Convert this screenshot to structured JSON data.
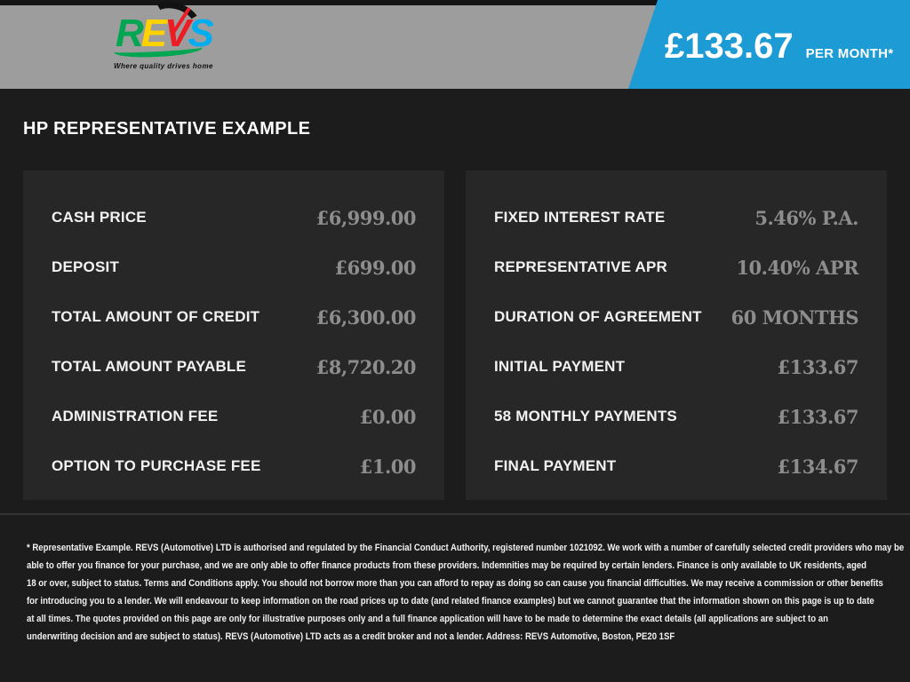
{
  "header": {
    "logo": {
      "letters": [
        "R",
        "E",
        "V",
        "S"
      ],
      "letter_colors": [
        "#00a651",
        "#ffd200",
        "#ed1c24",
        "#00aeef"
      ],
      "tagline": "Where quality drives home"
    },
    "price": "£133.67",
    "price_suffix": "PER MONTH*",
    "banner_color": "#1d9bd5"
  },
  "title": "HP REPRESENTATIVE EXAMPLE",
  "panels": {
    "left": {
      "rows": [
        {
          "label": "CASH PRICE",
          "value": "£6,999.00"
        },
        {
          "label": "DEPOSIT",
          "value": "£699.00"
        },
        {
          "label": "TOTAL AMOUNT OF CREDIT",
          "value": "£6,300.00"
        },
        {
          "label": "TOTAL AMOUNT PAYABLE",
          "value": "£8,720.20"
        },
        {
          "label": "ADMINISTRATION FEE",
          "value": "£0.00"
        },
        {
          "label": "OPTION TO PURCHASE FEE",
          "value": "£1.00"
        }
      ]
    },
    "right": {
      "rows": [
        {
          "label": "FIXED INTEREST RATE",
          "value": "5.46% P.A."
        },
        {
          "label": "REPRESENTATIVE APR",
          "value": "10.40% APR"
        },
        {
          "label": "DURATION OF AGREEMENT",
          "value": "60 MONTHS"
        },
        {
          "label": "INITIAL PAYMENT",
          "value": "£133.67"
        },
        {
          "label": "58 MONTHLY PAYMENTS",
          "value": "£133.67"
        },
        {
          "label": "FINAL PAYMENT",
          "value": "£134.67"
        }
      ]
    }
  },
  "disclaimer": {
    "lines": [
      "* Representative Example. REVS (Automotive) LTD is authorised and regulated by the Financial Conduct Authority, registered number 1021092. We work with a number of carefully selected credit providers who may be",
      "able to offer you finance for your purchase, and we are only able to offer finance products from these providers. Indemnities may be required by certain lenders. Finance is only available to UK residents, aged",
      "18 or over, subject to status. Terms and Conditions apply. You should not borrow more than you can afford to repay as doing so can cause you financial difficulties. We may receive a commission or other benefits",
      "for introducing you to a lender. We will endeavour to keep information on the road prices up to date (and related finance examples) but we cannot guarantee that the information shown on this page is up to date",
      "at all times. The quotes provided on this page are only for illustrative purposes only and a full finance application will have to be made to determine the exact details (all applications are subject to an",
      "underwriting decision and are subject to status). REVS (Automotive) LTD acts as a credit broker and not a lender. Address: REVS Automotive, Boston, PE20 1SF"
    ]
  }
}
